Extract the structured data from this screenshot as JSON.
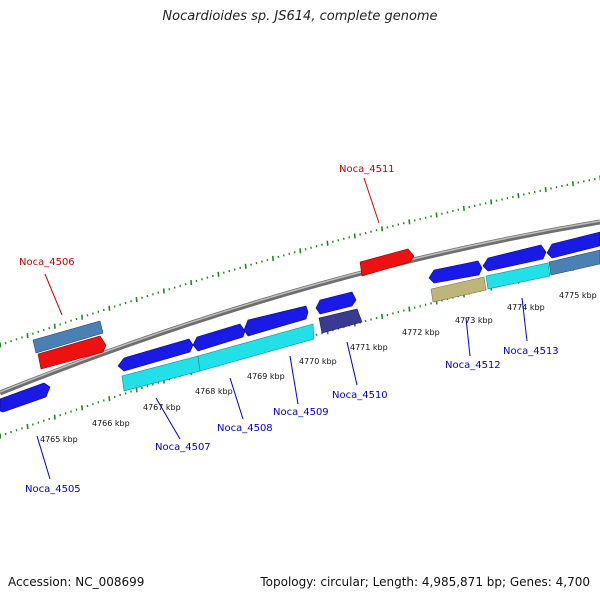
{
  "title": "Nocardioides sp. JS614, complete genome",
  "footer": {
    "accession": "Accession: NC_008699",
    "summary": "Topology: circular; Length: 4,985,871 bp; Genes: 4,700"
  },
  "colors": {
    "backbone": "#888888",
    "ticks": "#1e8a1e",
    "gene_blue": "#1a1ae6",
    "gene_red": "#ee1111",
    "gene_cyan": "#22e0e8",
    "gene_steel": "#4a80b4",
    "gene_navy": "#3a3a90",
    "gene_khaki": "#bdb57a",
    "label_blue": "#0000cc",
    "label_red": "#cc0000"
  },
  "scale_labels": [
    "4765 kbp",
    "4766 kbp",
    "4767 kbp",
    "4768 kbp",
    "4769 kbp",
    "4770 kbp",
    "4771 kbp",
    "4772 kbp",
    "4773 kbp",
    "4774 kbp",
    "4775 kbp"
  ],
  "gene_labels": [
    {
      "text": "Noca_4505",
      "strand": "minus"
    },
    {
      "text": "Noca_4506",
      "strand": "plus"
    },
    {
      "text": "Noca_4507",
      "strand": "minus"
    },
    {
      "text": "Noca_4508",
      "strand": "minus"
    },
    {
      "text": "Noca_4509",
      "strand": "minus"
    },
    {
      "text": "Noca_4510",
      "strand": "minus"
    },
    {
      "text": "Noca_4511",
      "strand": "plus"
    },
    {
      "text": "Noca_4512",
      "strand": "minus"
    },
    {
      "text": "Noca_4513",
      "strand": "minus"
    }
  ]
}
